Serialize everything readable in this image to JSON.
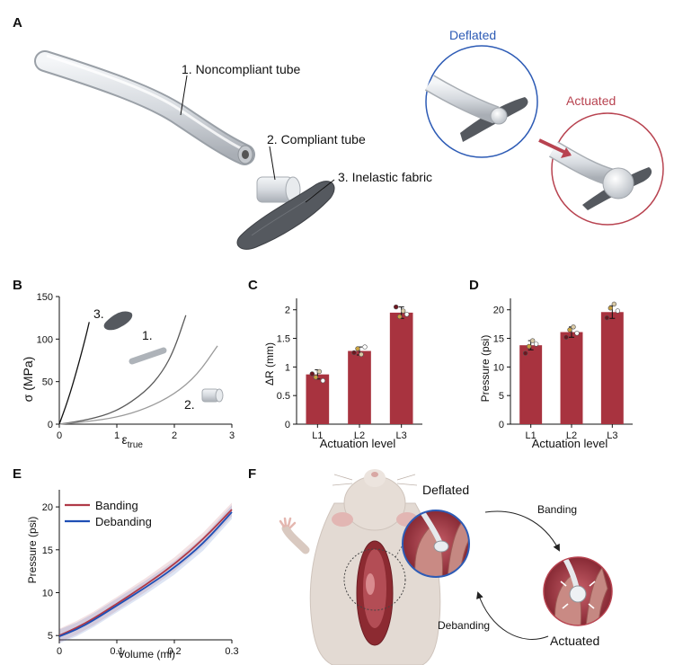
{
  "panels": {
    "a": "A",
    "b": "B",
    "c": "C",
    "d": "D",
    "e": "E",
    "f": "F"
  },
  "panel_a": {
    "label1": "1. Noncompliant tube",
    "label2": "2. Compliant tube",
    "label3": "3. Inelastic fabric",
    "deflated": "Deflated",
    "actuated": "Actuated"
  },
  "panel_b": {
    "ylabel": "σ (MPa)",
    "xlabel_main": "ε",
    "xlabel_sub": "true",
    "curve_labels": [
      "1.",
      "2.",
      "3."
    ]
  },
  "panel_f": {
    "deflated": "Deflated",
    "actuated": "Actuated",
    "banding": "Banding",
    "debanding": "Debanding"
  },
  "colors": {
    "bar": "#a8333f",
    "banding": "#b03a48",
    "debanding": "#1f4fb5",
    "deflated_ring": "#2d5bb5",
    "actuated_ring": "#b84350"
  },
  "chart_data": [
    {
      "panel": "B",
      "type": "line",
      "xlabel": "ε_true",
      "ylabel": "σ (MPa)",
      "xlim": [
        0,
        3
      ],
      "ylim": [
        0,
        150
      ],
      "xticks": [
        0,
        1,
        2,
        3
      ],
      "yticks": [
        0,
        50,
        100,
        150
      ],
      "series": [
        {
          "name": "1.",
          "x": [
            0,
            0.5,
            1.0,
            1.5,
            1.8,
            2.0,
            2.2
          ],
          "y": [
            0,
            5,
            15,
            38,
            62,
            88,
            128
          ]
        },
        {
          "name": "2.",
          "x": [
            0,
            0.5,
            1.0,
            1.5,
            2.0,
            2.4,
            2.75
          ],
          "y": [
            0,
            3,
            8,
            18,
            35,
            58,
            92
          ]
        },
        {
          "name": "3.",
          "x": [
            0,
            0.15,
            0.3,
            0.45,
            0.52
          ],
          "y": [
            0,
            28,
            62,
            100,
            120
          ]
        }
      ]
    },
    {
      "panel": "C",
      "type": "bar",
      "categories": [
        "L1",
        "L2",
        "L3"
      ],
      "values": [
        0.87,
        1.28,
        1.95
      ],
      "errors": [
        0.08,
        0.07,
        0.1
      ],
      "points": [
        [
          0.88,
          0.82,
          0.92,
          0.76
        ],
        [
          1.25,
          1.32,
          1.22,
          1.35
        ],
        [
          2.05,
          1.88,
          1.98,
          1.92
        ]
      ],
      "xlabel": "Actuation level",
      "ylabel": "ΔR (mm)",
      "ylim": [
        0,
        2.2
      ],
      "yticks": [
        0,
        0.5,
        1,
        1.5,
        2
      ]
    },
    {
      "panel": "D",
      "type": "bar",
      "categories": [
        "L1",
        "L2",
        "L3"
      ],
      "values": [
        13.8,
        16.1,
        19.6
      ],
      "errors": [
        0.8,
        0.9,
        1.1
      ],
      "points": [
        [
          12.4,
          13.6,
          14.6,
          14.0
        ],
        [
          15.2,
          16.5,
          17.0,
          15.9
        ],
        [
          18.6,
          20.3,
          21.0,
          19.8
        ]
      ],
      "xlabel": "Actuation level",
      "ylabel": "Pressure (psi)",
      "ylim": [
        0,
        22
      ],
      "yticks": [
        0,
        5,
        10,
        15,
        20
      ]
    },
    {
      "panel": "E",
      "type": "line",
      "xlabel": "Volume (ml)",
      "ylabel": "Pressure (psi)",
      "xlim": [
        0,
        0.3
      ],
      "ylim": [
        4.5,
        22
      ],
      "xticks": [
        0,
        0.1,
        0.2,
        0.3
      ],
      "yticks": [
        5,
        10,
        15,
        20
      ],
      "legend": "top-left",
      "series": [
        {
          "name": "Banding",
          "x": [
            0,
            0.03,
            0.06,
            0.1,
            0.15,
            0.2,
            0.25,
            0.3
          ],
          "y": [
            5.0,
            5.9,
            7.0,
            8.7,
            10.9,
            13.3,
            16.2,
            19.7
          ]
        },
        {
          "name": "Debanding",
          "x": [
            0,
            0.03,
            0.06,
            0.1,
            0.15,
            0.2,
            0.25,
            0.3
          ],
          "y": [
            4.9,
            5.7,
            6.8,
            8.5,
            10.6,
            12.9,
            15.7,
            19.4
          ]
        }
      ]
    }
  ]
}
